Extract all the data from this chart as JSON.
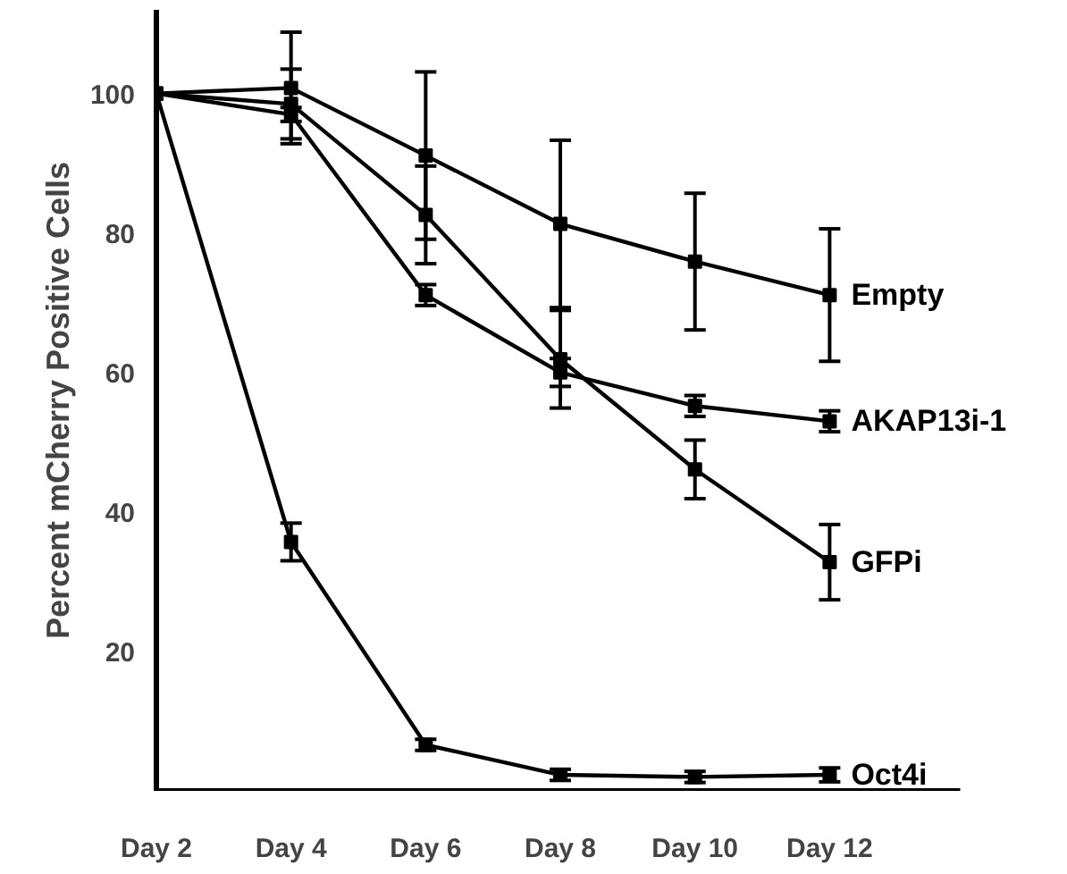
{
  "chart_data": {
    "type": "line",
    "ylabel": "Percent mCherry Positive Cells",
    "categories": [
      "Day 2",
      "Day 4",
      "Day 6",
      "Day 8",
      "Day 10",
      "Day 12"
    ],
    "ylim": [
      0,
      112
    ],
    "yticks": [
      20,
      40,
      60,
      80,
      100
    ],
    "grid": false,
    "marker": "square",
    "line_style": "solid",
    "series": [
      {
        "name": "Empty",
        "color": "#000000",
        "values": [
          100,
          100.8,
          91.1,
          81.3,
          75.9,
          71.1
        ],
        "errors": [
          null,
          8,
          12,
          12,
          9.8,
          9.5
        ]
      },
      {
        "name": "AKAP13i-1",
        "color": "#000000",
        "values": [
          100,
          97,
          71.1,
          60,
          55.2,
          53
        ],
        "errors": [
          null,
          1,
          1.5,
          2,
          1.5,
          1.5
        ]
      },
      {
        "name": "GFPi",
        "color": "#000000",
        "values": [
          100,
          98.5,
          82.6,
          61.9,
          46.1,
          32.8
        ],
        "errors": [
          null,
          5,
          7,
          7,
          4.2,
          5.4
        ]
      },
      {
        "name": "Oct4i",
        "color": "#000000",
        "values": [
          100,
          35.7,
          6.6,
          2.3,
          2,
          2.3
        ],
        "errors": [
          null,
          2.7,
          0.8,
          0.8,
          0.8,
          1
        ]
      }
    ]
  }
}
